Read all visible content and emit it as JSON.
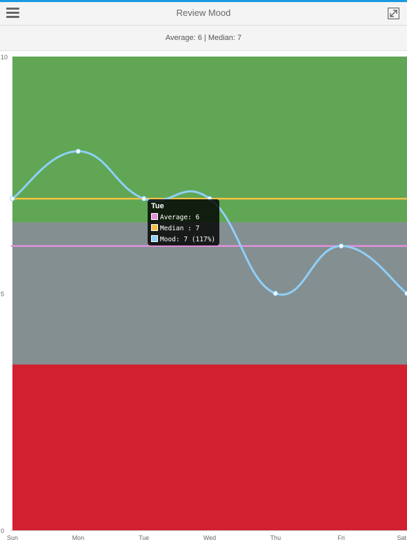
{
  "header": {
    "title": "Review Mood"
  },
  "summary": {
    "text": "Average: 6 | Median: 7"
  },
  "colors": {
    "accent": "#1a9ae0",
    "good_zone": "#60a655",
    "neutral_zone": "#848f92",
    "bad_zone": "#d2202f",
    "average_line": "#e38fdc",
    "median_line": "#f5c243",
    "mood_line": "#8fd0f8"
  },
  "icons": {
    "menu": "hamburger-menu-icon",
    "expand": "expand-icon"
  },
  "chart_data": {
    "type": "line",
    "categories": [
      "Sun",
      "Mon",
      "Tue",
      "Wed",
      "Thu",
      "Fri",
      "Sat"
    ],
    "y_ticks": [
      "0",
      "5",
      "10"
    ],
    "ylim": [
      0,
      10
    ],
    "series": [
      {
        "name": "Mood",
        "values": [
          7,
          8,
          7,
          7,
          5,
          6,
          5
        ]
      },
      {
        "name": "Average",
        "values": [
          6,
          6,
          6,
          6,
          6,
          6,
          6
        ]
      },
      {
        "name": "Median",
        "values": [
          7,
          7,
          7,
          7,
          7,
          7,
          7
        ]
      }
    ],
    "bands": [
      {
        "from": 0,
        "to": 3.5
      },
      {
        "from": 3.5,
        "to": 6.5
      },
      {
        "from": 6.5,
        "to": 10
      }
    ],
    "tooltip": {
      "title": "Tue",
      "rows": [
        {
          "text": "Average: 6",
          "color": "#e38fdc"
        },
        {
          "text": "Median : 7",
          "color": "#f5c243"
        },
        {
          "text": "Mood: 7 (117%)",
          "color": "#8fd0f8"
        }
      ]
    }
  }
}
